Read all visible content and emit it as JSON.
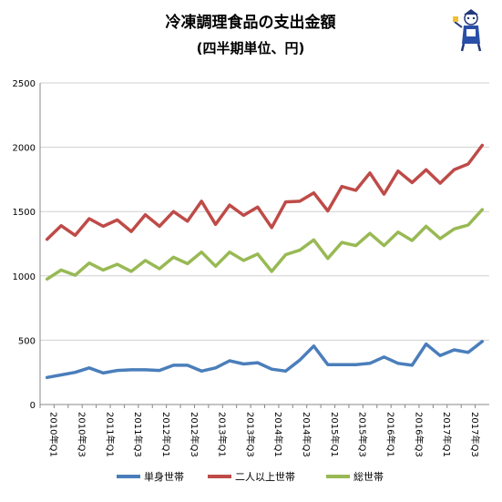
{
  "chart_data": {
    "type": "line",
    "title": "冷凍調理食品の支出金額",
    "subtitle": "(四半期単位、円)",
    "ylim": [
      0,
      2500
    ],
    "yticks": [
      0,
      500,
      1000,
      1500,
      2000,
      2500
    ],
    "grid": "horizontal",
    "legend_position": "bottom",
    "categories": [
      "2010年Q1",
      "2010年Q2",
      "2010年Q3",
      "2010年Q4",
      "2011年Q1",
      "2011年Q2",
      "2011年Q3",
      "2011年Q4",
      "2012年Q1",
      "2012年Q2",
      "2012年Q3",
      "2012年Q4",
      "2013年Q1",
      "2013年Q2",
      "2013年Q3",
      "2013年Q4",
      "2014年Q1",
      "2014年Q2",
      "2014年Q3",
      "2014年Q4",
      "2015年Q1",
      "2015年Q2",
      "2015年Q3",
      "2015年Q4",
      "2016年Q1",
      "2016年Q2",
      "2016年Q3",
      "2016年Q4",
      "2017年Q1",
      "2017年Q2",
      "2017年Q3",
      "2017年Q4"
    ],
    "xtick_labels": [
      "2010年Q1",
      "2010年Q3",
      "2011年Q1",
      "2011年Q3",
      "2012年Q1",
      "2012年Q3",
      "2013年Q1",
      "2013年Q3",
      "2014年Q1",
      "2014年Q3",
      "2015年Q1",
      "2015年Q3",
      "2016年Q1",
      "2016年Q3",
      "2017年Q1",
      "2017年Q3"
    ],
    "series": [
      {
        "name": "単身世帯",
        "color": "#4a7ebb",
        "values": [
          210,
          230,
          250,
          285,
          245,
          265,
          270,
          270,
          265,
          305,
          305,
          260,
          285,
          340,
          315,
          325,
          275,
          260,
          345,
          455,
          310,
          310,
          310,
          320,
          370,
          320,
          305,
          470,
          380,
          425,
          405,
          490
        ]
      },
      {
        "name": "二人以上世帯",
        "color": "#be4b48",
        "values": [
          1285,
          1390,
          1315,
          1445,
          1385,
          1435,
          1345,
          1475,
          1385,
          1500,
          1425,
          1580,
          1400,
          1550,
          1470,
          1535,
          1375,
          1575,
          1580,
          1645,
          1505,
          1695,
          1665,
          1800,
          1635,
          1815,
          1725,
          1825,
          1720,
          1825,
          1870,
          2015
        ]
      },
      {
        "name": "総世帯",
        "color": "#98b954",
        "values": [
          975,
          1045,
          1005,
          1100,
          1045,
          1090,
          1035,
          1120,
          1055,
          1145,
          1095,
          1185,
          1075,
          1185,
          1120,
          1170,
          1035,
          1165,
          1200,
          1280,
          1135,
          1260,
          1235,
          1330,
          1235,
          1340,
          1275,
          1385,
          1290,
          1365,
          1395,
          1515
        ]
      }
    ]
  },
  "mascot": {
    "icon": "mascot-character-icon"
  }
}
